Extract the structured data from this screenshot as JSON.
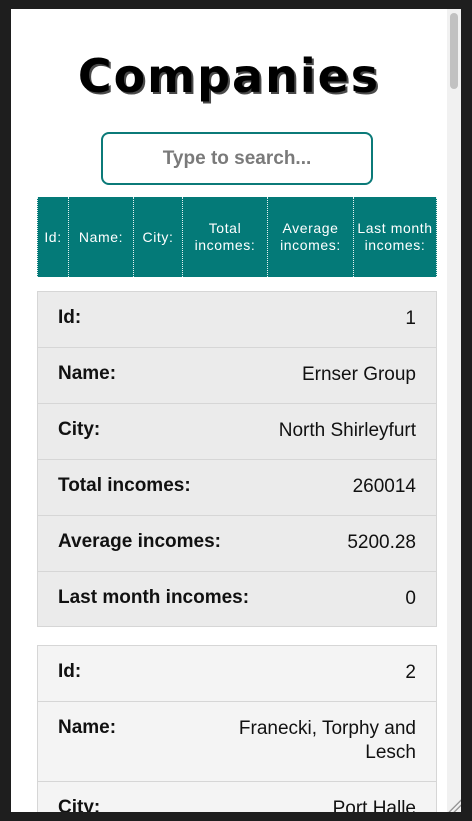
{
  "page": {
    "title": "Companies"
  },
  "search": {
    "placeholder": "Type to search..."
  },
  "table": {
    "columns": [
      "Id:",
      "Name:",
      "City:",
      "Total incomes:",
      "Average incomes:",
      "Last month incomes:"
    ]
  },
  "records": [
    {
      "id": "1",
      "name": "Ernser Group",
      "city": "North Shirleyfurt",
      "total_incomes": "260014",
      "average_incomes": "5200.28",
      "last_month_incomes": "0"
    },
    {
      "id": "2",
      "name": "Franecki, Torphy and Lesch",
      "city": "Port Halle",
      "total_incomes": "",
      "average_incomes": "",
      "last_month_incomes": ""
    }
  ],
  "labels": {
    "id": "Id:",
    "name": "Name:",
    "city": "City:",
    "total_incomes": "Total incomes:",
    "average_incomes": "Average incomes:",
    "last_month_incomes": "Last month incomes:"
  },
  "colors": {
    "accent": "#047a78",
    "card_odd": "#ebebeb",
    "card_even": "#f4f4f4"
  }
}
